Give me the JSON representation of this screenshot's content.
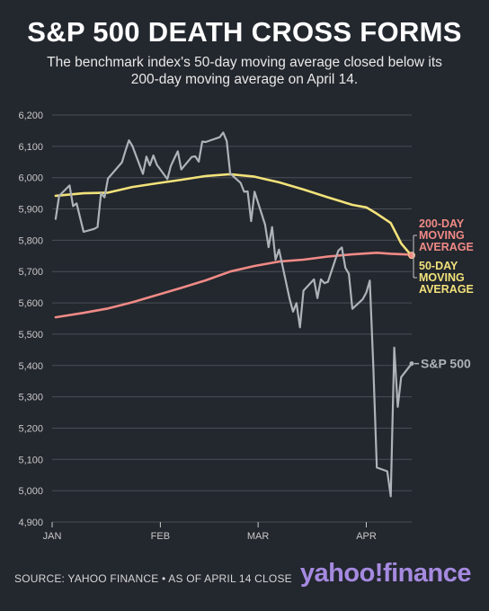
{
  "header": {
    "title": "S&P 500 DEATH CROSS FORMS",
    "subtitle": "The benchmark index's 50-day moving average closed below its 200-day moving average on April 14."
  },
  "footer": {
    "source": "SOURCE: YAHOO FINANCE • AS OF APRIL 14 CLOSE",
    "logo_text": "yahoo!finance"
  },
  "colors": {
    "background": "#23272e",
    "sp500": "#aeb3b9",
    "ma50": "#f2e27a",
    "ma200": "#f08a86",
    "grid": "#4a4f57",
    "axis_text": "#c8c8c8",
    "logo": "#a58ae0"
  },
  "chart_data": {
    "type": "line",
    "ylim": [
      4900,
      6200
    ],
    "y_ticks": [
      "4,900",
      "5,000",
      "5,100",
      "5,200",
      "5,300",
      "5,400",
      "5,500",
      "5,600",
      "5,700",
      "5,800",
      "5,900",
      "6,000",
      "6,100",
      "6,200"
    ],
    "x_ticks": [
      "JAN",
      "FEB",
      "MAR",
      "APR"
    ],
    "xlim": [
      "2025-01-01",
      "2025-04-14"
    ],
    "grid": true,
    "series": [
      {
        "name": "S&P 500",
        "label": "S&P 500",
        "color": "#aeb3b9",
        "points": [
          [
            "2025-01-02",
            5868
          ],
          [
            "2025-01-03",
            5942
          ],
          [
            "2025-01-06",
            5975
          ],
          [
            "2025-01-07",
            5909
          ],
          [
            "2025-01-08",
            5918
          ],
          [
            "2025-01-10",
            5827
          ],
          [
            "2025-01-13",
            5836
          ],
          [
            "2025-01-14",
            5842
          ],
          [
            "2025-01-15",
            5950
          ],
          [
            "2025-01-16",
            5937
          ],
          [
            "2025-01-17",
            5997
          ],
          [
            "2025-01-21",
            6049
          ],
          [
            "2025-01-22",
            6086
          ],
          [
            "2025-01-23",
            6119
          ],
          [
            "2025-01-24",
            6101
          ],
          [
            "2025-01-27",
            6012
          ],
          [
            "2025-01-28",
            6067
          ],
          [
            "2025-01-29",
            6039
          ],
          [
            "2025-01-30",
            6071
          ],
          [
            "2025-01-31",
            6041
          ],
          [
            "2025-02-03",
            5995
          ],
          [
            "2025-02-04",
            6037
          ],
          [
            "2025-02-05",
            6061
          ],
          [
            "2025-02-06",
            6084
          ],
          [
            "2025-02-07",
            6026
          ],
          [
            "2025-02-10",
            6066
          ],
          [
            "2025-02-11",
            6068
          ],
          [
            "2025-02-12",
            6051
          ],
          [
            "2025-02-13",
            6115
          ],
          [
            "2025-02-14",
            6114
          ],
          [
            "2025-02-18",
            6129
          ],
          [
            "2025-02-19",
            6144
          ],
          [
            "2025-02-20",
            6117
          ],
          [
            "2025-02-21",
            6013
          ],
          [
            "2025-02-24",
            5983
          ],
          [
            "2025-02-25",
            5955
          ],
          [
            "2025-02-26",
            5956
          ],
          [
            "2025-02-27",
            5861
          ],
          [
            "2025-02-28",
            5955
          ],
          [
            "2025-03-03",
            5850
          ],
          [
            "2025-03-04",
            5778
          ],
          [
            "2025-03-05",
            5842
          ],
          [
            "2025-03-06",
            5738
          ],
          [
            "2025-03-07",
            5770
          ],
          [
            "2025-03-10",
            5614
          ],
          [
            "2025-03-11",
            5572
          ],
          [
            "2025-03-12",
            5599
          ],
          [
            "2025-03-13",
            5522
          ],
          [
            "2025-03-14",
            5639
          ],
          [
            "2025-03-17",
            5675
          ],
          [
            "2025-03-18",
            5615
          ],
          [
            "2025-03-19",
            5675
          ],
          [
            "2025-03-20",
            5663
          ],
          [
            "2025-03-21",
            5667
          ],
          [
            "2025-03-24",
            5767
          ],
          [
            "2025-03-25",
            5777
          ],
          [
            "2025-03-26",
            5712
          ],
          [
            "2025-03-27",
            5693
          ],
          [
            "2025-03-28",
            5581
          ],
          [
            "2025-03-31",
            5612
          ],
          [
            "2025-04-01",
            5633
          ],
          [
            "2025-04-02",
            5671
          ],
          [
            "2025-04-03",
            5397
          ],
          [
            "2025-04-04",
            5074
          ],
          [
            "2025-04-07",
            5062
          ],
          [
            "2025-04-08",
            4982
          ],
          [
            "2025-04-09",
            5457
          ],
          [
            "2025-04-10",
            5268
          ],
          [
            "2025-04-11",
            5363
          ],
          [
            "2025-04-14",
            5406
          ]
        ]
      },
      {
        "name": "50-DAY MOVING AVERAGE",
        "label": [
          "50-DAY",
          "MOVING",
          "AVERAGE"
        ],
        "color": "#f2e27a",
        "points": [
          [
            "2025-01-02",
            5942
          ],
          [
            "2025-01-10",
            5950
          ],
          [
            "2025-01-17",
            5952
          ],
          [
            "2025-01-24",
            5970
          ],
          [
            "2025-01-31",
            5982
          ],
          [
            "2025-02-07",
            5993
          ],
          [
            "2025-02-14",
            6005
          ],
          [
            "2025-02-21",
            6011
          ],
          [
            "2025-02-28",
            6003
          ],
          [
            "2025-03-03",
            5995
          ],
          [
            "2025-03-07",
            5985
          ],
          [
            "2025-03-14",
            5962
          ],
          [
            "2025-03-21",
            5937
          ],
          [
            "2025-03-28",
            5913
          ],
          [
            "2025-04-01",
            5905
          ],
          [
            "2025-04-04",
            5885
          ],
          [
            "2025-04-08",
            5855
          ],
          [
            "2025-04-11",
            5790
          ],
          [
            "2025-04-14",
            5750
          ]
        ]
      },
      {
        "name": "200-DAY MOVING AVERAGE",
        "label": [
          "200-DAY",
          "MOVING",
          "AVERAGE"
        ],
        "color": "#f08a86",
        "points": [
          [
            "2025-01-02",
            5554
          ],
          [
            "2025-01-10",
            5568
          ],
          [
            "2025-01-17",
            5582
          ],
          [
            "2025-01-24",
            5602
          ],
          [
            "2025-01-31",
            5625
          ],
          [
            "2025-02-07",
            5648
          ],
          [
            "2025-02-14",
            5672
          ],
          [
            "2025-02-21",
            5700
          ],
          [
            "2025-02-28",
            5718
          ],
          [
            "2025-03-07",
            5732
          ],
          [
            "2025-03-14",
            5738
          ],
          [
            "2025-03-21",
            5748
          ],
          [
            "2025-03-28",
            5755
          ],
          [
            "2025-04-04",
            5760
          ],
          [
            "2025-04-08",
            5757
          ],
          [
            "2025-04-14",
            5754
          ]
        ]
      }
    ],
    "annotation": {
      "date": "2025-04-14",
      "value": 5752
    }
  }
}
